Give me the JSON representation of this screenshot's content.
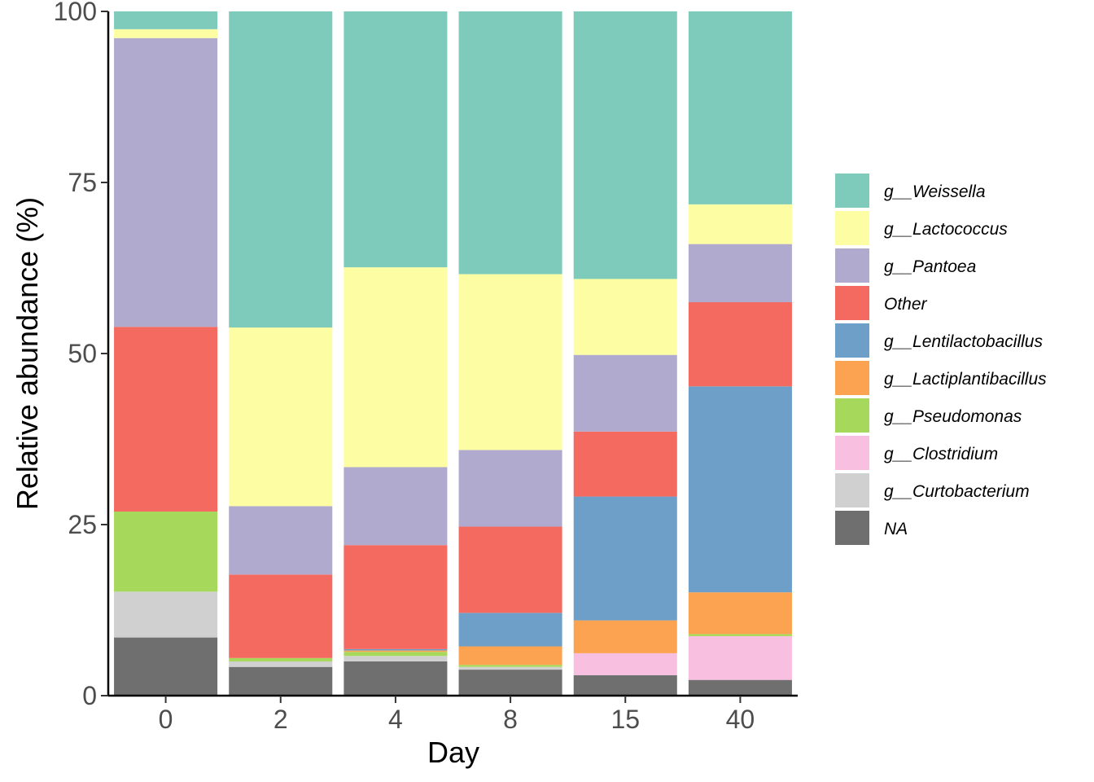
{
  "chart_data": {
    "type": "stacked_bar",
    "title": "",
    "xlabel": "Day",
    "ylabel": "Relative abundance (%)",
    "ylim": [
      0,
      100
    ],
    "yticks": [
      0,
      25,
      50,
      75,
      100
    ],
    "grid": false,
    "legend_position": "right",
    "categories": [
      "0",
      "2",
      "4",
      "8",
      "15",
      "40"
    ],
    "series": [
      {
        "name": "NA",
        "color": "#6f6f6f",
        "values": [
          8.5,
          4.2,
          5.0,
          3.8,
          3.0,
          2.3
        ]
      },
      {
        "name": "g__Curtobacterium",
        "color": "#d0d0d0",
        "values": [
          6.7,
          0.8,
          0.8,
          0.4,
          0.0,
          0.0
        ]
      },
      {
        "name": "g__Clostridium",
        "color": "#f8bfe0",
        "values": [
          0.0,
          0.0,
          0.0,
          0.0,
          3.2,
          6.4
        ]
      },
      {
        "name": "g__Pseudomonas",
        "color": "#a6d95b",
        "values": [
          11.7,
          0.5,
          0.6,
          0.3,
          0.0,
          0.3
        ]
      },
      {
        "name": "g__Lactiplantibacillus",
        "color": "#fba351",
        "values": [
          0.0,
          0.0,
          0.2,
          2.7,
          4.8,
          6.1
        ]
      },
      {
        "name": "g__Lentilactobacillus",
        "color": "#6d9fc8",
        "values": [
          0.0,
          0.0,
          0.2,
          4.9,
          18.1,
          30.1
        ]
      },
      {
        "name": "Other",
        "color": "#f46a60",
        "values": [
          27.0,
          12.2,
          15.2,
          12.6,
          9.5,
          12.3
        ]
      },
      {
        "name": "g__Pantoea",
        "color": "#b0aacf",
        "values": [
          42.2,
          10.0,
          11.4,
          11.2,
          11.2,
          8.5
        ]
      },
      {
        "name": "g__Lactococcus",
        "color": "#fdfea3",
        "values": [
          1.3,
          26.1,
          29.2,
          25.7,
          11.1,
          5.8
        ]
      },
      {
        "name": "g__Weissella",
        "color": "#7ecbbb",
        "values": [
          2.6,
          46.2,
          37.4,
          38.4,
          39.1,
          28.2
        ]
      }
    ],
    "legend_order": [
      "g__Weissella",
      "g__Lactococcus",
      "g__Pantoea",
      "Other",
      "g__Lentilactobacillus",
      "g__Lactiplantibacillus",
      "g__Pseudomonas",
      "g__Clostridium",
      "g__Curtobacterium",
      "NA"
    ]
  }
}
